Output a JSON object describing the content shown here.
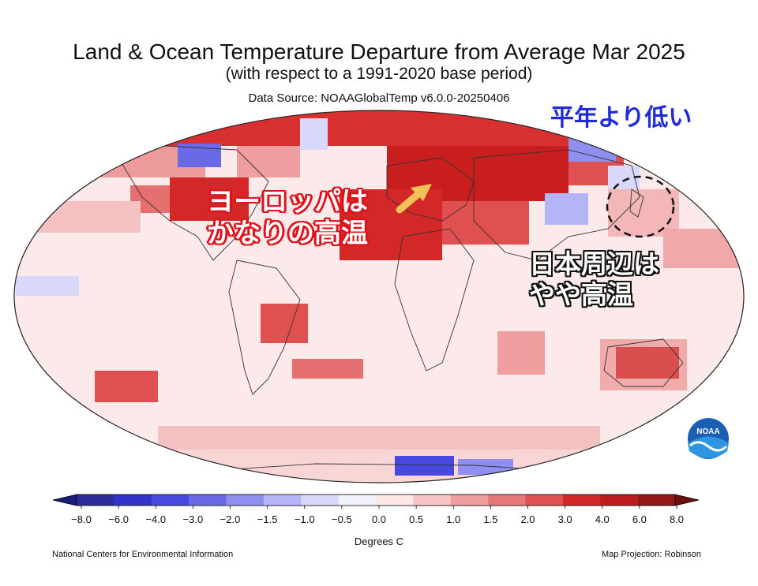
{
  "header": {
    "title": "Land & Ocean Temperature Departure from Average Mar 2025",
    "subtitle": "(with respect to a 1991-2020 base period)",
    "source": "Data Source: NOAAGlobalTemp v6.0.0-20250406"
  },
  "annotations": {
    "below_normal": "平年より低い",
    "europe_line1": "ヨーロッパは",
    "europe_line2": "かなりの高温",
    "japan_line1": "日本周辺は",
    "japan_line2": "やや高温"
  },
  "colorbar": {
    "title": "Degrees C",
    "ticks": [
      "−8.0",
      "−6.0",
      "−4.0",
      "−3.0",
      "−2.0",
      "−1.5",
      "−1.0",
      "−0.5",
      "0.0",
      "0.5",
      "1.0",
      "1.5",
      "2.0",
      "3.0",
      "4.0",
      "6.0",
      "8.0"
    ],
    "colors": [
      "#2b2b9a",
      "#3232c8",
      "#4848e0",
      "#6a6ae8",
      "#8f8ff0",
      "#b4b4f6",
      "#d8d8fb",
      "#f2f2fe",
      "#fde6e6",
      "#f6c4c4",
      "#ef9f9f",
      "#e77878",
      "#e05050",
      "#d42828",
      "#be1c1c",
      "#921818"
    ],
    "low_end_color": "#1b1b7a",
    "high_end_color": "#6e1010"
  },
  "logo": {
    "text": "NOAA"
  },
  "footer": {
    "left": "National Centers for Environmental Information",
    "right": "Map Projection: Robinson"
  }
}
